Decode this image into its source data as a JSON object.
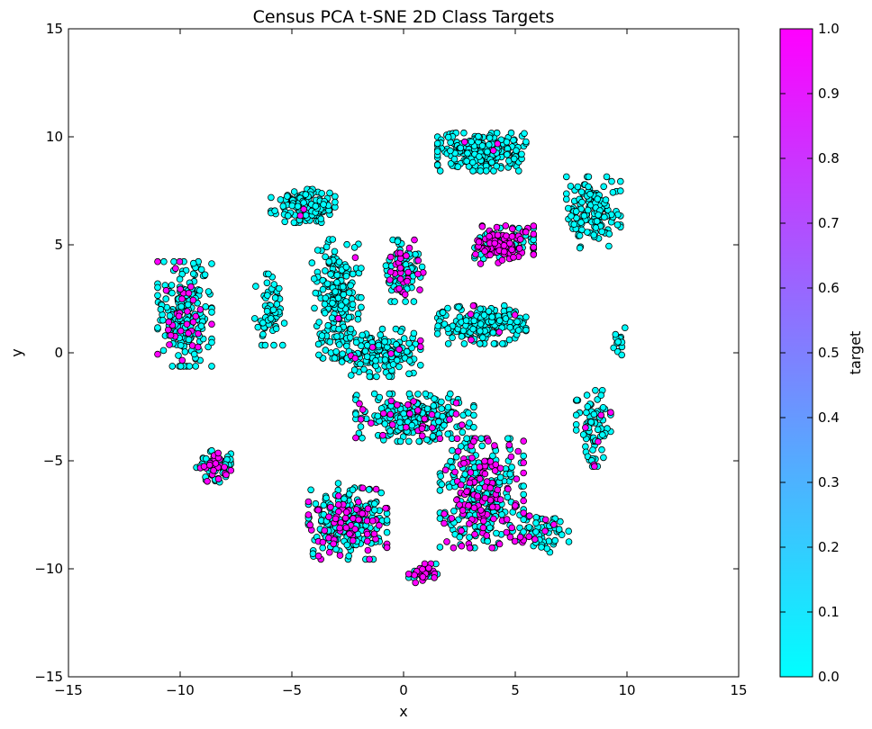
{
  "chart_data": {
    "type": "scatter",
    "title": "Census PCA t-SNE 2D Class Targets",
    "xlabel": "x",
    "ylabel": "y",
    "xlim": [
      -15,
      15
    ],
    "ylim": [
      -15,
      15
    ],
    "xticks": [
      -15,
      -10,
      -5,
      0,
      5,
      10,
      15
    ],
    "yticks": [
      -15,
      -10,
      -5,
      0,
      5,
      10,
      15
    ],
    "grid": false,
    "colorbar": {
      "label": "target",
      "range": [
        0.0,
        1.0
      ],
      "ticks": [
        "0.0",
        "0.1",
        "0.2",
        "0.3",
        "0.4",
        "0.5",
        "0.6",
        "0.7",
        "0.8",
        "0.9",
        "1.0"
      ],
      "colormap": "cool",
      "color_low": "#00ffff",
      "color_high": "#ff00ff"
    },
    "marker_edge_color": "#000000",
    "clusters": [
      {
        "center": [
          -9.8,
          1.8
        ],
        "spread": [
          1.1,
          2.2
        ],
        "count": 230,
        "target1_fraction": 0.12
      },
      {
        "center": [
          -8.5,
          -5.3
        ],
        "spread": [
          0.7,
          0.7
        ],
        "count": 80,
        "target1_fraction": 0.35
      },
      {
        "center": [
          -6.0,
          2.0
        ],
        "spread": [
          0.6,
          1.5
        ],
        "count": 60,
        "target1_fraction": 0.0
      },
      {
        "center": [
          -4.5,
          6.8
        ],
        "spread": [
          1.3,
          0.7
        ],
        "count": 150,
        "target1_fraction": 0.02
      },
      {
        "center": [
          -3.0,
          2.5
        ],
        "spread": [
          1.0,
          2.5
        ],
        "count": 200,
        "target1_fraction": 0.03
      },
      {
        "center": [
          -1.0,
          0.0
        ],
        "spread": [
          1.6,
          1.0
        ],
        "count": 160,
        "target1_fraction": 0.03
      },
      {
        "center": [
          0.0,
          3.8
        ],
        "spread": [
          0.8,
          1.3
        ],
        "count": 100,
        "target1_fraction": 0.25
      },
      {
        "center": [
          3.5,
          9.3
        ],
        "spread": [
          1.8,
          0.8
        ],
        "count": 220,
        "target1_fraction": 0.01
      },
      {
        "center": [
          4.5,
          5.0
        ],
        "spread": [
          1.2,
          0.8
        ],
        "count": 160,
        "target1_fraction": 0.6
      },
      {
        "center": [
          8.5,
          6.5
        ],
        "spread": [
          1.1,
          1.5
        ],
        "count": 150,
        "target1_fraction": 0.0
      },
      {
        "center": [
          3.5,
          1.3
        ],
        "spread": [
          1.8,
          0.8
        ],
        "count": 180,
        "target1_fraction": 0.02
      },
      {
        "center": [
          0.5,
          -3.0
        ],
        "spread": [
          2.4,
          1.0
        ],
        "count": 240,
        "target1_fraction": 0.1
      },
      {
        "center": [
          -2.5,
          -7.8
        ],
        "spread": [
          1.6,
          1.6
        ],
        "count": 260,
        "target1_fraction": 0.3
      },
      {
        "center": [
          3.5,
          -6.5
        ],
        "spread": [
          1.7,
          2.3
        ],
        "count": 340,
        "target1_fraction": 0.38
      },
      {
        "center": [
          8.5,
          -3.5
        ],
        "spread": [
          0.7,
          1.6
        ],
        "count": 80,
        "target1_fraction": 0.02
      },
      {
        "center": [
          6.3,
          -8.3
        ],
        "spread": [
          1.0,
          0.9
        ],
        "count": 60,
        "target1_fraction": 0.1
      },
      {
        "center": [
          1.0,
          -10.2
        ],
        "spread": [
          0.7,
          0.4
        ],
        "count": 40,
        "target1_fraction": 0.6
      },
      {
        "center": [
          9.6,
          0.5
        ],
        "spread": [
          0.3,
          0.6
        ],
        "count": 15,
        "target1_fraction": 0.0
      }
    ]
  }
}
